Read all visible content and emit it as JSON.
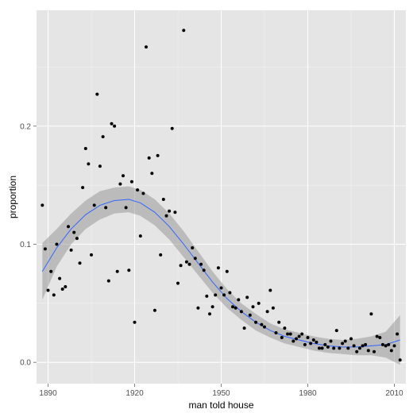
{
  "chart_data": {
    "type": "scatter",
    "title": "",
    "xlabel": "man told house",
    "ylabel": "proportion",
    "xlim": [
      1886,
      2014
    ],
    "ylim": [
      -0.018,
      0.298
    ],
    "xticks": [
      1890,
      1920,
      1950,
      1980,
      2010
    ],
    "yticks": [
      0.0,
      0.1,
      0.2
    ],
    "ytick_labels": [
      "0.0",
      "0.1",
      "0.2"
    ],
    "grid": true,
    "colors": {
      "panel": "#e5e5e5",
      "grid_major": "#ffffff",
      "points": "#000000",
      "smooth_line": "#3366ff",
      "ribbon": "#999999"
    },
    "points": [
      {
        "x": 1888,
        "y": 0.133
      },
      {
        "x": 1889,
        "y": 0.096
      },
      {
        "x": 1890,
        "y": 0.061
      },
      {
        "x": 1891,
        "y": 0.077
      },
      {
        "x": 1892,
        "y": 0.057
      },
      {
        "x": 1893,
        "y": 0.1
      },
      {
        "x": 1894,
        "y": 0.071
      },
      {
        "x": 1895,
        "y": 0.062
      },
      {
        "x": 1896,
        "y": 0.064
      },
      {
        "x": 1897,
        "y": 0.115
      },
      {
        "x": 1898,
        "y": 0.095
      },
      {
        "x": 1899,
        "y": 0.11
      },
      {
        "x": 1900,
        "y": 0.105
      },
      {
        "x": 1901,
        "y": 0.084
      },
      {
        "x": 1902,
        "y": 0.148
      },
      {
        "x": 1903,
        "y": 0.181
      },
      {
        "x": 1904,
        "y": 0.168
      },
      {
        "x": 1905,
        "y": 0.091
      },
      {
        "x": 1906,
        "y": 0.133
      },
      {
        "x": 1907,
        "y": 0.227
      },
      {
        "x": 1908,
        "y": 0.166
      },
      {
        "x": 1909,
        "y": 0.191
      },
      {
        "x": 1910,
        "y": 0.131
      },
      {
        "x": 1911,
        "y": 0.069
      },
      {
        "x": 1912,
        "y": 0.202
      },
      {
        "x": 1913,
        "y": 0.2
      },
      {
        "x": 1914,
        "y": 0.077
      },
      {
        "x": 1915,
        "y": 0.151
      },
      {
        "x": 1916,
        "y": 0.158
      },
      {
        "x": 1917,
        "y": 0.131
      },
      {
        "x": 1918,
        "y": 0.078
      },
      {
        "x": 1919,
        "y": 0.153
      },
      {
        "x": 1920,
        "y": 0.034
      },
      {
        "x": 1921,
        "y": 0.146
      },
      {
        "x": 1922,
        "y": 0.107
      },
      {
        "x": 1923,
        "y": 0.143
      },
      {
        "x": 1924,
        "y": 0.267
      },
      {
        "x": 1925,
        "y": 0.173
      },
      {
        "x": 1926,
        "y": 0.16
      },
      {
        "x": 1927,
        "y": 0.044
      },
      {
        "x": 1928,
        "y": 0.175
      },
      {
        "x": 1929,
        "y": 0.091
      },
      {
        "x": 1930,
        "y": 0.138
      },
      {
        "x": 1931,
        "y": 0.124
      },
      {
        "x": 1932,
        "y": 0.128
      },
      {
        "x": 1933,
        "y": 0.198
      },
      {
        "x": 1934,
        "y": 0.127
      },
      {
        "x": 1935,
        "y": 0.067
      },
      {
        "x": 1936,
        "y": 0.082
      },
      {
        "x": 1937,
        "y": 0.281
      },
      {
        "x": 1938,
        "y": 0.085
      },
      {
        "x": 1939,
        "y": 0.083
      },
      {
        "x": 1940,
        "y": 0.097
      },
      {
        "x": 1941,
        "y": 0.088
      },
      {
        "x": 1942,
        "y": 0.046
      },
      {
        "x": 1943,
        "y": 0.083
      },
      {
        "x": 1944,
        "y": 0.078
      },
      {
        "x": 1945,
        "y": 0.056
      },
      {
        "x": 1946,
        "y": 0.041
      },
      {
        "x": 1947,
        "y": 0.047
      },
      {
        "x": 1948,
        "y": 0.057
      },
      {
        "x": 1949,
        "y": 0.08
      },
      {
        "x": 1950,
        "y": 0.063
      },
      {
        "x": 1951,
        "y": 0.057
      },
      {
        "x": 1952,
        "y": 0.077
      },
      {
        "x": 1953,
        "y": 0.059
      },
      {
        "x": 1954,
        "y": 0.047
      },
      {
        "x": 1955,
        "y": 0.046
      },
      {
        "x": 1956,
        "y": 0.053
      },
      {
        "x": 1957,
        "y": 0.043
      },
      {
        "x": 1958,
        "y": 0.029
      },
      {
        "x": 1959,
        "y": 0.055
      },
      {
        "x": 1960,
        "y": 0.04
      },
      {
        "x": 1961,
        "y": 0.047
      },
      {
        "x": 1962,
        "y": 0.034
      },
      {
        "x": 1963,
        "y": 0.05
      },
      {
        "x": 1964,
        "y": 0.032
      },
      {
        "x": 1965,
        "y": 0.03
      },
      {
        "x": 1966,
        "y": 0.043
      },
      {
        "x": 1967,
        "y": 0.061
      },
      {
        "x": 1968,
        "y": 0.046
      },
      {
        "x": 1969,
        "y": 0.025
      },
      {
        "x": 1970,
        "y": 0.034
      },
      {
        "x": 1971,
        "y": 0.021
      },
      {
        "x": 1972,
        "y": 0.029
      },
      {
        "x": 1973,
        "y": 0.024
      },
      {
        "x": 1974,
        "y": 0.024
      },
      {
        "x": 1975,
        "y": 0.018
      },
      {
        "x": 1976,
        "y": 0.02
      },
      {
        "x": 1977,
        "y": 0.022
      },
      {
        "x": 1978,
        "y": 0.024
      },
      {
        "x": 1979,
        "y": 0.015
      },
      {
        "x": 1980,
        "y": 0.021
      },
      {
        "x": 1981,
        "y": 0.016
      },
      {
        "x": 1982,
        "y": 0.019
      },
      {
        "x": 1983,
        "y": 0.017
      },
      {
        "x": 1984,
        "y": 0.012
      },
      {
        "x": 1985,
        "y": 0.012
      },
      {
        "x": 1986,
        "y": 0.015
      },
      {
        "x": 1987,
        "y": 0.013
      },
      {
        "x": 1988,
        "y": 0.018
      },
      {
        "x": 1989,
        "y": 0.012
      },
      {
        "x": 1990,
        "y": 0.027
      },
      {
        "x": 1991,
        "y": 0.012
      },
      {
        "x": 1992,
        "y": 0.016
      },
      {
        "x": 1993,
        "y": 0.018
      },
      {
        "x": 1994,
        "y": 0.012
      },
      {
        "x": 1995,
        "y": 0.02
      },
      {
        "x": 1996,
        "y": 0.014
      },
      {
        "x": 1997,
        "y": 0.009
      },
      {
        "x": 1998,
        "y": 0.012
      },
      {
        "x": 1999,
        "y": 0.014
      },
      {
        "x": 2000,
        "y": 0.015
      },
      {
        "x": 2001,
        "y": 0.01
      },
      {
        "x": 2002,
        "y": 0.041
      },
      {
        "x": 2003,
        "y": 0.009
      },
      {
        "x": 2004,
        "y": 0.022
      },
      {
        "x": 2005,
        "y": 0.021
      },
      {
        "x": 2006,
        "y": 0.015
      },
      {
        "x": 2007,
        "y": 0.014
      },
      {
        "x": 2008,
        "y": 0.015
      },
      {
        "x": 2009,
        "y": 0.01
      },
      {
        "x": 2010,
        "y": 0.014
      },
      {
        "x": 2011,
        "y": 0.024
      },
      {
        "x": 2012,
        "y": 0.002
      }
    ],
    "smooth": {
      "x": [
        1888,
        1893,
        1898,
        1903,
        1908,
        1913,
        1918,
        1922,
        1927,
        1932,
        1937,
        1942,
        1947,
        1952,
        1957,
        1962,
        1967,
        1972,
        1977,
        1982,
        1987,
        1992,
        1997,
        2002,
        2007,
        2012
      ],
      "y": [
        0.077,
        0.097,
        0.113,
        0.125,
        0.133,
        0.137,
        0.138,
        0.135,
        0.127,
        0.115,
        0.1,
        0.084,
        0.068,
        0.054,
        0.043,
        0.034,
        0.027,
        0.022,
        0.019,
        0.016,
        0.014,
        0.013,
        0.013,
        0.014,
        0.015,
        0.019
      ],
      "lower": [
        0.053,
        0.081,
        0.1,
        0.113,
        0.121,
        0.126,
        0.127,
        0.124,
        0.116,
        0.104,
        0.089,
        0.074,
        0.059,
        0.046,
        0.036,
        0.027,
        0.021,
        0.016,
        0.013,
        0.01,
        0.008,
        0.007,
        0.006,
        0.006,
        0.004,
        -0.002
      ],
      "upper": [
        0.101,
        0.113,
        0.126,
        0.137,
        0.145,
        0.148,
        0.149,
        0.146,
        0.138,
        0.126,
        0.111,
        0.094,
        0.077,
        0.062,
        0.05,
        0.041,
        0.033,
        0.028,
        0.025,
        0.022,
        0.02,
        0.019,
        0.02,
        0.022,
        0.026,
        0.04
      ]
    }
  }
}
